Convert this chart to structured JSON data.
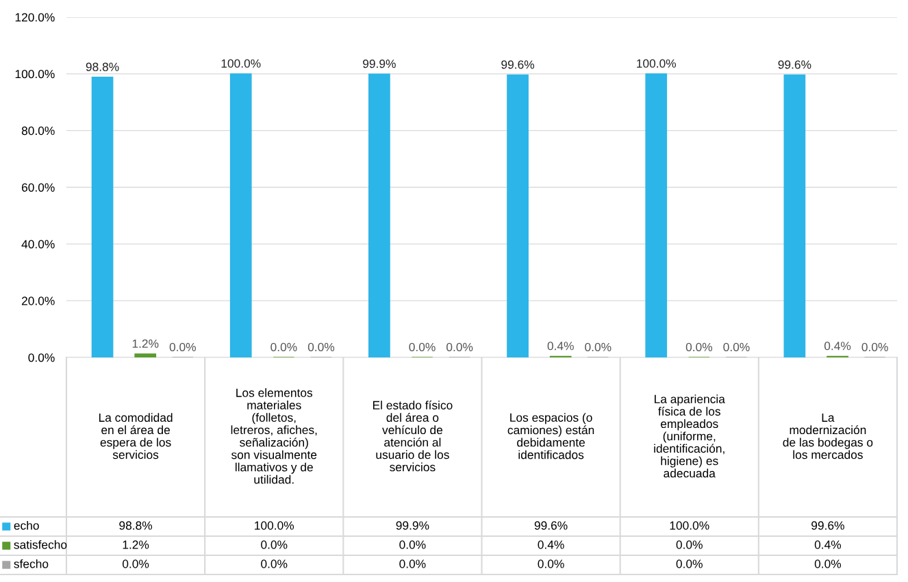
{
  "chart_data": {
    "type": "bar",
    "categories": [
      "La comodidad\nen el área de\nespera de los\nservicios",
      "Los elementos\nmateriales\n(folletos,\nletreros, afiches,\nseñalización)\nson visualmente\nllamativos y de\nutilidad.",
      "El estado físico\ndel área o\nvehículo de\natención al\nusuario de los\nservicios",
      "Los espacios (o\ncamiones) están\ndebidamente\nidentificados",
      "La apariencia\nfísica de los\nempleados\n(uniforme,\nidentificación,\nhigiene) es\nadecuada",
      "La\nmodernización\nde las bodegas o\nlos mercados"
    ],
    "series": [
      {
        "name": "echo",
        "color": "#2cb5e8",
        "values": [
          98.8,
          100.0,
          99.9,
          99.6,
          100.0,
          99.6
        ],
        "value_labels": [
          "98.8%",
          "100.0%",
          "99.9%",
          "99.6%",
          "100.0%",
          "99.6%"
        ]
      },
      {
        "name": "satisfecho",
        "color": "#5b9b2f",
        "values": [
          1.2,
          0.0,
          0.0,
          0.4,
          0.0,
          0.4
        ],
        "value_labels": [
          "1.2%",
          "0.0%",
          "0.0%",
          "0.4%",
          "0.0%",
          "0.4%"
        ]
      },
      {
        "name": "sfecho",
        "color": "#a5a5a5",
        "values": [
          0.0,
          0.0,
          0.0,
          0.0,
          0.0,
          0.0
        ],
        "value_labels": [
          "0.0%",
          "0.0%",
          "0.0%",
          "0.0%",
          "0.0%",
          "0.0%"
        ]
      }
    ],
    "ylim": [
      0,
      120
    ],
    "yticks": [
      {
        "value": 0,
        "label": "0.0%"
      },
      {
        "value": 20,
        "label": "20.0%"
      },
      {
        "value": 40,
        "label": "40.0%"
      },
      {
        "value": 60,
        "label": "60.0%"
      },
      {
        "value": 80,
        "label": "80.0%"
      },
      {
        "value": 100,
        "label": "100.0%"
      },
      {
        "value": 120,
        "label": "120.0%"
      }
    ],
    "grid": "y",
    "legend": "bottom"
  }
}
